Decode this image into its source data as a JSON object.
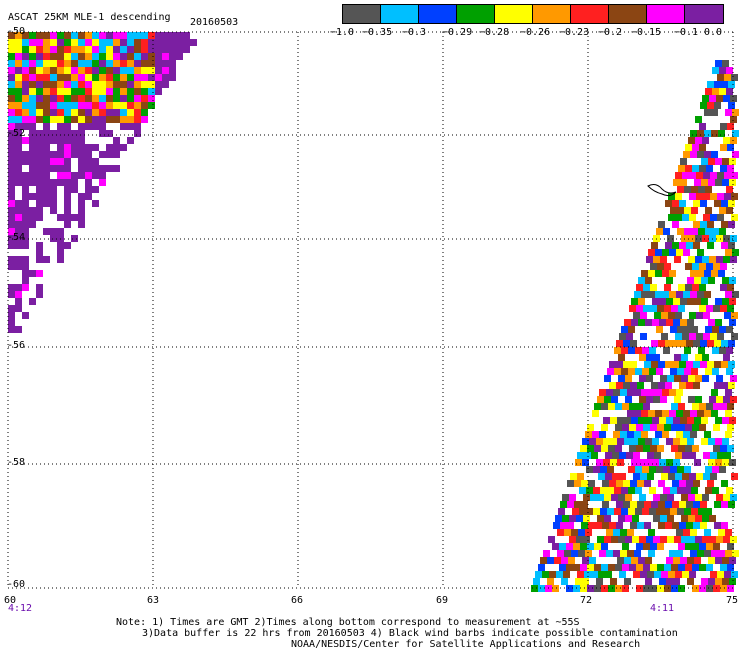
{
  "header": {
    "title": "ASCAT 25KM MLE-1 descending",
    "date": "20160503"
  },
  "colorbar": {
    "colors": [
      "#555555",
      "#00bfff",
      "#0040ff",
      "#00a000",
      "#ffff00",
      "#ff9900",
      "#ff2020",
      "#8b4513",
      "#ff00ff",
      "#7b1fa2"
    ],
    "tick_labels": [
      "-1.0",
      "-0.35",
      "-0.3",
      "-0.29",
      "-0.28",
      "-0.26",
      "-0.23",
      "-0.2",
      "-0.15",
      "-0.1",
      "0.0"
    ]
  },
  "axes": {
    "lat_labels": [
      "-50",
      "-52",
      "-54",
      "-56",
      "-58",
      "-60"
    ],
    "lon_labels": [
      "60",
      "63",
      "66",
      "69",
      "72",
      "75"
    ],
    "time_labels": [
      "4:12",
      "4:11"
    ],
    "grid": "dotted",
    "lat_range": [
      -60,
      -50
    ],
    "lon_range": [
      60,
      75
    ]
  },
  "footer": {
    "line1": "Note: 1) Times are GMT 2)Times along bottom correspond to measurement at ~55S",
    "line2": "3)Data buffer is 22 hrs from 20160503 4) Black wind barbs indicate possible contamination",
    "line3": "NOAA/NESDIS/Center for Satellite Applications and Research"
  }
}
